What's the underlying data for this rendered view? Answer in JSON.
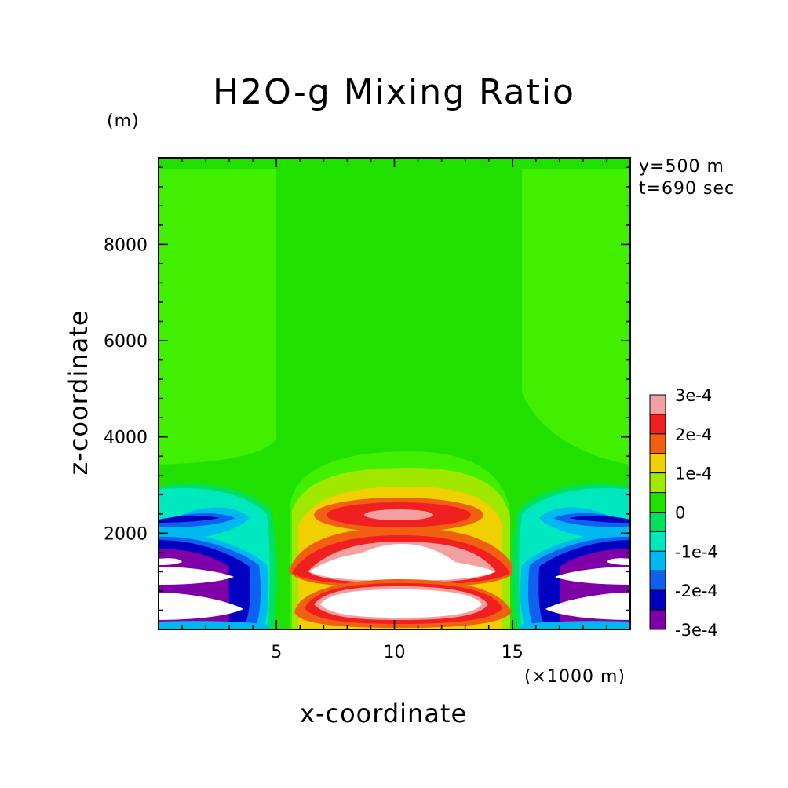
{
  "chart_data": {
    "type": "heatmap",
    "title": "H2O-g Mixing Ratio",
    "xlabel": "x-coordinate",
    "ylabel": "z-coordinate",
    "x_unit": "(×1000 m)",
    "z_unit": "(m)",
    "annotations": [
      "y=500 m",
      "t=690 sec"
    ],
    "xlim": [
      0,
      20
    ],
    "ylim": [
      0,
      9800
    ],
    "x_ticks": [
      5,
      10,
      15
    ],
    "y_ticks": [
      2000,
      4000,
      6000,
      8000
    ],
    "colorbar": {
      "levels": [
        "3e-4",
        "2e-4",
        "1e-4",
        "0",
        "-1e-4",
        "-2e-4",
        "-3e-4"
      ],
      "colors": [
        "#f4a0a0",
        "#f02020",
        "#f06010",
        "#f0d000",
        "#a0e800",
        "#20e000",
        "#00e060",
        "#00e8c0",
        "#00b8f0",
        "#1060f0",
        "#0000c0",
        "#8000a8"
      ]
    },
    "background_field_color": "#20e000",
    "fields": {
      "near_zero_positive_color": "#40f000",
      "max_region_color": "#ffffff"
    }
  }
}
